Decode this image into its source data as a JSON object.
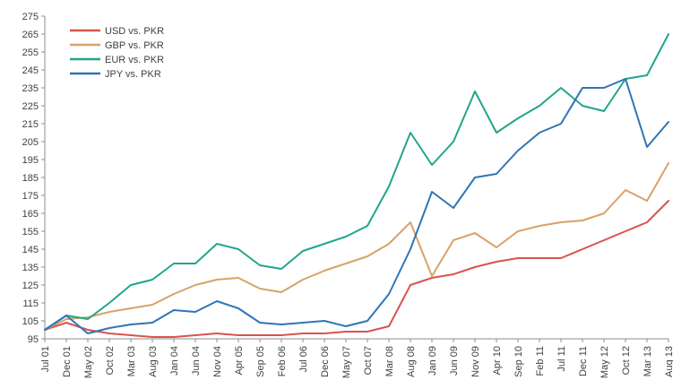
{
  "chart_data": {
    "type": "line",
    "title": "",
    "xlabel": "",
    "ylabel": "",
    "ylim": [
      95,
      275
    ],
    "yticks": [
      95,
      105,
      115,
      125,
      135,
      145,
      155,
      165,
      175,
      185,
      195,
      205,
      215,
      225,
      235,
      245,
      255,
      265,
      275
    ],
    "ytick_labels": [
      "95",
      "105",
      "115",
      "125",
      "135",
      "145",
      "155",
      "165",
      "175",
      "185",
      "195",
      "205",
      "215",
      "225",
      "235",
      "245",
      "255",
      "265",
      "275"
    ],
    "x_start": "2001-07",
    "x_end": "2013-08",
    "xtick_labels": [
      "Jul 01",
      "Dec 01",
      "May 02",
      "Oct 02",
      "Mar 03",
      "Aug 03",
      "Jan 04",
      "Jun 04",
      "Nov 04",
      "Apr 05",
      "Sep 05",
      "Feb 06",
      "Jul 06",
      "Dec 06",
      "May 07",
      "Oct 07",
      "Mar 08",
      "Aug 08",
      "Jan 09",
      "Jun 09",
      "Nov 09",
      "Apr 10",
      "Sep 10",
      "Feb 11",
      "Jul 11",
      "Dec 11",
      "May 12",
      "Oct 12",
      "Mar 13",
      "Aug 13"
    ],
    "grid": false,
    "legend_position": "top-left",
    "series": [
      {
        "name": "USD vs. PKR",
        "color": "#d9534f",
        "points": [
          [
            "Jul 01",
            100
          ],
          [
            "Dec 01",
            104
          ],
          [
            "May 02",
            100
          ],
          [
            "Oct 02",
            98
          ],
          [
            "Mar 03",
            97
          ],
          [
            "Aug 03",
            96
          ],
          [
            "Jan 04",
            96
          ],
          [
            "Jun 04",
            97
          ],
          [
            "Nov 04",
            98
          ],
          [
            "Apr 05",
            97
          ],
          [
            "Sep 05",
            97
          ],
          [
            "Feb 06",
            97
          ],
          [
            "Jul 06",
            98
          ],
          [
            "Dec 06",
            98
          ],
          [
            "May 07",
            99
          ],
          [
            "Oct 07",
            99
          ],
          [
            "Mar 08",
            102
          ],
          [
            "Aug 08",
            125
          ],
          [
            "Jan 09",
            129
          ],
          [
            "Jun 09",
            131
          ],
          [
            "Nov 09",
            135
          ],
          [
            "Apr 10",
            138
          ],
          [
            "Sep 10",
            140
          ],
          [
            "Feb 11",
            140
          ],
          [
            "Jul 11",
            140
          ],
          [
            "Dec 11",
            145
          ],
          [
            "May 12",
            150
          ],
          [
            "Oct 12",
            155
          ],
          [
            "Mar 13",
            160
          ],
          [
            "Aug 13",
            172
          ]
        ]
      },
      {
        "name": "GBP vs. PKR",
        "color": "#d8a268",
        "points": [
          [
            "Jul 01",
            100
          ],
          [
            "Dec 01",
            106
          ],
          [
            "May 02",
            107
          ],
          [
            "Oct 02",
            110
          ],
          [
            "Mar 03",
            112
          ],
          [
            "Aug 03",
            114
          ],
          [
            "Jan 04",
            120
          ],
          [
            "Jun 04",
            125
          ],
          [
            "Nov 04",
            128
          ],
          [
            "Apr 05",
            129
          ],
          [
            "Sep 05",
            123
          ],
          [
            "Feb 06",
            121
          ],
          [
            "Jul 06",
            128
          ],
          [
            "Dec 06",
            133
          ],
          [
            "May 07",
            137
          ],
          [
            "Oct 07",
            141
          ],
          [
            "Mar 08",
            148
          ],
          [
            "Aug 08",
            160
          ],
          [
            "Jan 09",
            130
          ],
          [
            "Jun 09",
            150
          ],
          [
            "Nov 09",
            154
          ],
          [
            "Apr 10",
            146
          ],
          [
            "Sep 10",
            155
          ],
          [
            "Feb 11",
            158
          ],
          [
            "Jul 11",
            160
          ],
          [
            "Dec 11",
            161
          ],
          [
            "May 12",
            165
          ],
          [
            "Oct 12",
            178
          ],
          [
            "Mar 13",
            172
          ],
          [
            "Aug 13",
            193
          ]
        ]
      },
      {
        "name": "EUR vs. PKR",
        "color": "#21a58b",
        "points": [
          [
            "Jul 01",
            100
          ],
          [
            "Dec 01",
            108
          ],
          [
            "May 02",
            106
          ],
          [
            "Oct 02",
            115
          ],
          [
            "Mar 03",
            125
          ],
          [
            "Aug 03",
            128
          ],
          [
            "Jan 04",
            137
          ],
          [
            "Jun 04",
            137
          ],
          [
            "Nov 04",
            148
          ],
          [
            "Apr 05",
            145
          ],
          [
            "Sep 05",
            136
          ],
          [
            "Feb 06",
            134
          ],
          [
            "Jul 06",
            144
          ],
          [
            "Dec 06",
            148
          ],
          [
            "May 07",
            152
          ],
          [
            "Oct 07",
            158
          ],
          [
            "Mar 08",
            180
          ],
          [
            "Aug 08",
            210
          ],
          [
            "Jan 09",
            192
          ],
          [
            "Jun 09",
            205
          ],
          [
            "Nov 09",
            233
          ],
          [
            "Apr 10",
            210
          ],
          [
            "Sep 10",
            218
          ],
          [
            "Feb 11",
            225
          ],
          [
            "Jul 11",
            235
          ],
          [
            "Dec 11",
            225
          ],
          [
            "May 12",
            222
          ],
          [
            "Oct 12",
            240
          ],
          [
            "Mar 13",
            242
          ],
          [
            "Aug 13",
            265
          ]
        ]
      },
      {
        "name": "JPY vs. PKR",
        "color": "#2e75b6",
        "points": [
          [
            "Jul 01",
            100
          ],
          [
            "Dec 01",
            108
          ],
          [
            "May 02",
            98
          ],
          [
            "Oct 02",
            101
          ],
          [
            "Mar 03",
            103
          ],
          [
            "Aug 03",
            104
          ],
          [
            "Jan 04",
            111
          ],
          [
            "Jun 04",
            110
          ],
          [
            "Nov 04",
            116
          ],
          [
            "Apr 05",
            112
          ],
          [
            "Sep 05",
            104
          ],
          [
            "Feb 06",
            103
          ],
          [
            "Jul 06",
            104
          ],
          [
            "Dec 06",
            105
          ],
          [
            "May 07",
            102
          ],
          [
            "Oct 07",
            105
          ],
          [
            "Mar 08",
            120
          ],
          [
            "Aug 08",
            145
          ],
          [
            "Jan 09",
            177
          ],
          [
            "Jun 09",
            168
          ],
          [
            "Nov 09",
            185
          ],
          [
            "Apr 10",
            187
          ],
          [
            "Sep 10",
            200
          ],
          [
            "Feb 11",
            210
          ],
          [
            "Jul 11",
            215
          ],
          [
            "Dec 11",
            235
          ],
          [
            "May 12",
            235
          ],
          [
            "Oct 12",
            240
          ],
          [
            "Mar 13",
            202
          ],
          [
            "Aug 13",
            216
          ]
        ]
      }
    ]
  }
}
